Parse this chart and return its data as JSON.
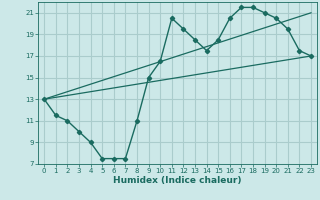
{
  "xlabel": "Humidex (Indice chaleur)",
  "bg_color": "#cce8e8",
  "grid_color": "#aacccc",
  "line_color": "#1a6b60",
  "xlim": [
    -0.5,
    23.5
  ],
  "ylim": [
    7,
    22
  ],
  "xticks": [
    0,
    1,
    2,
    3,
    4,
    5,
    6,
    7,
    8,
    9,
    10,
    11,
    12,
    13,
    14,
    15,
    16,
    17,
    18,
    19,
    20,
    21,
    22,
    23
  ],
  "yticks": [
    7,
    9,
    11,
    13,
    15,
    17,
    19,
    21
  ],
  "curve_x": [
    0,
    1,
    2,
    3,
    4,
    5,
    6,
    7,
    8,
    9,
    10,
    11,
    12,
    13,
    14,
    15,
    16,
    17,
    18,
    19,
    20,
    21,
    22,
    23
  ],
  "curve_y": [
    13,
    11.5,
    11,
    10,
    9,
    7.5,
    7.5,
    7.5,
    11,
    15,
    16.5,
    20.5,
    19.5,
    18.5,
    17.5,
    18.5,
    20.5,
    21.5,
    21.5,
    21,
    20.5,
    19.5,
    17.5,
    17
  ],
  "line1_x": [
    0,
    23
  ],
  "line1_y": [
    13,
    17
  ],
  "line2_x": [
    0,
    23
  ],
  "line2_y": [
    13,
    21
  ]
}
